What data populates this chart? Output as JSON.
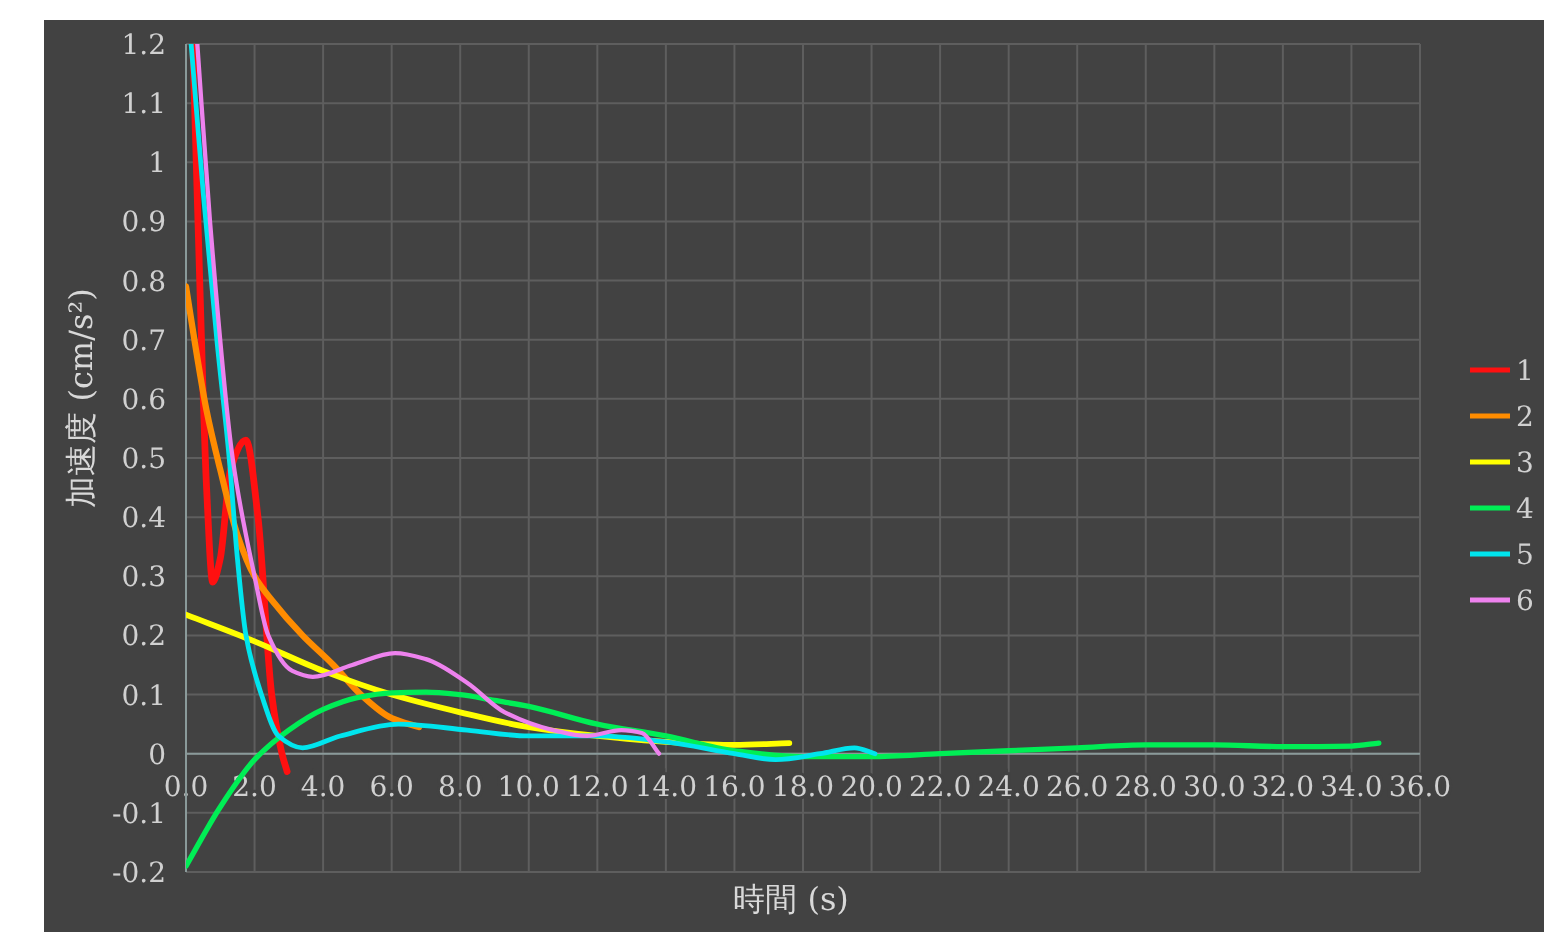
{
  "chart_data": {
    "type": "line",
    "xlabel": "時間 (s)",
    "ylabel": "加速度 (cm/s²)",
    "xlim": [
      0,
      36
    ],
    "ylim": [
      -0.2,
      1.2
    ],
    "xticks": [
      {
        "value": 0,
        "label": "0.0"
      },
      {
        "value": 2,
        "label": "2.0"
      },
      {
        "value": 4,
        "label": "4.0"
      },
      {
        "value": 6,
        "label": "6.0"
      },
      {
        "value": 8,
        "label": "8.0"
      },
      {
        "value": 10,
        "label": "10.0"
      },
      {
        "value": 12,
        "label": "12.0"
      },
      {
        "value": 14,
        "label": "14.0"
      },
      {
        "value": 16,
        "label": "16.0"
      },
      {
        "value": 18,
        "label": "18.0"
      },
      {
        "value": 20,
        "label": "20.0"
      },
      {
        "value": 22,
        "label": "22.0"
      },
      {
        "value": 24,
        "label": "24.0"
      },
      {
        "value": 26,
        "label": "26.0"
      },
      {
        "value": 28,
        "label": "28.0"
      },
      {
        "value": 30,
        "label": "30.0"
      },
      {
        "value": 32,
        "label": "32.0"
      },
      {
        "value": 34,
        "label": "34.0"
      },
      {
        "value": 36,
        "label": "36.0"
      }
    ],
    "yticks": [
      -0.2,
      -0.1,
      0,
      0.1,
      0.2,
      0.3,
      0.4,
      0.5,
      0.6,
      0.7,
      0.8,
      0.9,
      1,
      1.1,
      1.2
    ],
    "grid": true,
    "legend": "right",
    "marker": "none",
    "line_style": "solid",
    "series": [
      {
        "name": "1",
        "color": "#ff1010",
        "x": [
          0.2,
          0.4,
          0.6,
          0.78,
          1.0,
          1.3,
          1.75,
          2.1,
          2.5,
          2.8,
          2.95
        ],
        "values": [
          1.2,
          0.8,
          0.45,
          0.29,
          0.33,
          0.48,
          0.53,
          0.4,
          0.1,
          0.0,
          -0.03
        ]
      },
      {
        "name": "2",
        "color": "#ff8c00",
        "x": [
          0,
          0.3,
          0.6,
          1.0,
          1.5,
          2.0,
          2.5,
          3.4,
          4.3,
          5.1,
          6.0,
          6.8
        ],
        "values": [
          0.79,
          0.68,
          0.58,
          0.48,
          0.37,
          0.3,
          0.26,
          0.2,
          0.15,
          0.1,
          0.06,
          0.045
        ]
      },
      {
        "name": "3",
        "color": "#ffff00",
        "x": [
          0,
          2,
          4,
          6,
          8,
          10,
          12,
          14,
          16,
          17.6
        ],
        "values": [
          0.235,
          0.19,
          0.14,
          0.1,
          0.07,
          0.045,
          0.03,
          0.02,
          0.015,
          0.018
        ]
      },
      {
        "name": "4",
        "color": "#00ee55",
        "x": [
          0,
          1,
          2,
          3,
          4,
          5,
          6,
          7,
          8,
          9,
          10,
          12,
          14,
          16,
          18,
          20,
          22,
          24,
          26,
          28,
          30,
          32,
          34,
          34.8
        ],
        "values": [
          -0.19,
          -0.09,
          -0.01,
          0.04,
          0.075,
          0.095,
          0.103,
          0.104,
          0.1,
          0.09,
          0.08,
          0.05,
          0.03,
          0.005,
          -0.005,
          -0.005,
          0.0,
          0.005,
          0.01,
          0.015,
          0.015,
          0.012,
          0.013,
          0.018
        ]
      },
      {
        "name": "5",
        "color": "#00e5ee",
        "x": [
          0.15,
          0.5,
          0.9,
          1.26,
          1.5,
          1.75,
          2.2,
          2.7,
          3.4,
          4.5,
          6.2,
          8.2,
          10,
          12,
          14,
          16,
          17.2,
          18.5,
          19.5,
          20.1
        ],
        "values": [
          1.2,
          0.95,
          0.7,
          0.5,
          0.33,
          0.2,
          0.1,
          0.03,
          0.01,
          0.03,
          0.05,
          0.04,
          0.03,
          0.03,
          0.02,
          0.0,
          -0.01,
          0.0,
          0.01,
          0.0
        ]
      },
      {
        "name": "6",
        "color": "#ee82ee",
        "x": [
          0.33,
          0.7,
          1.36,
          2.0,
          2.4,
          3.1,
          3.7,
          4.85,
          6.1,
          7.0,
          8.2,
          9.3,
          10.7,
          11.7,
          12.7,
          13.3,
          13.8
        ],
        "values": [
          1.2,
          0.9,
          0.5,
          0.3,
          0.2,
          0.14,
          0.13,
          0.15,
          0.17,
          0.16,
          0.12,
          0.07,
          0.04,
          0.03,
          0.04,
          0.035,
          0.0
        ]
      }
    ]
  }
}
